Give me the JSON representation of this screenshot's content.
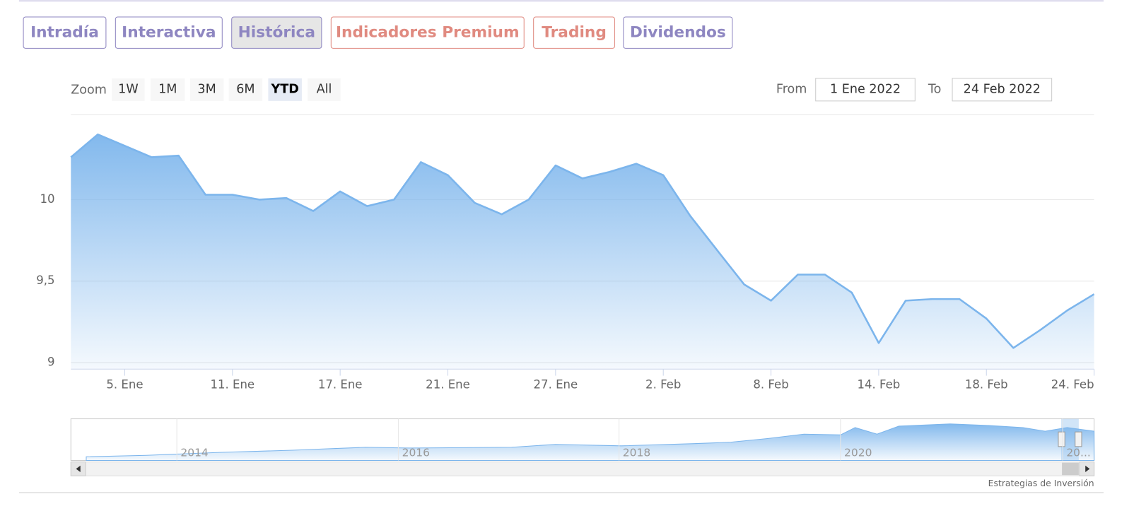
{
  "tabs": [
    {
      "label": "Intradía",
      "color": "#8e86c1"
    },
    {
      "label": "Interactiva",
      "color": "#8e86c1"
    },
    {
      "label": "Histórica",
      "color": "#8e86c1"
    },
    {
      "label": "Indicadores Premium",
      "color": "#e08a80"
    },
    {
      "label": "Trading",
      "color": "#e08a80"
    },
    {
      "label": "Dividendos",
      "color": "#8e86c1"
    }
  ],
  "active_tab": 2,
  "range_selector": {
    "zoom_label": "Zoom",
    "buttons": [
      "1W",
      "1M",
      "3M",
      "6M",
      "YTD",
      "All"
    ],
    "selected": 4,
    "from_label": "From",
    "from": "1 Ene 2022",
    "to_label": "To",
    "to": "24 Feb 2022"
  },
  "chart_data": {
    "type": "area",
    "x": [
      "2022-01-03",
      "2022-01-04",
      "2022-01-05",
      "2022-01-06",
      "2022-01-07",
      "2022-01-10",
      "2022-01-11",
      "2022-01-12",
      "2022-01-13",
      "2022-01-14",
      "2022-01-17",
      "2022-01-18",
      "2022-01-19",
      "2022-01-20",
      "2022-01-21",
      "2022-01-24",
      "2022-01-25",
      "2022-01-26",
      "2022-01-27",
      "2022-01-28",
      "2022-01-31",
      "2022-02-01",
      "2022-02-02",
      "2022-02-03",
      "2022-02-04",
      "2022-02-07",
      "2022-02-08",
      "2022-02-09",
      "2022-02-10",
      "2022-02-11",
      "2022-02-14",
      "2022-02-15",
      "2022-02-16",
      "2022-02-17",
      "2022-02-18",
      "2022-02-21",
      "2022-02-22",
      "2022-02-23",
      "2022-02-24"
    ],
    "values": [
      10.26,
      10.4,
      10.33,
      10.26,
      10.27,
      10.03,
      10.03,
      10.0,
      10.01,
      9.93,
      10.05,
      9.96,
      10.0,
      10.23,
      10.15,
      9.98,
      9.91,
      10.0,
      10.21,
      10.13,
      10.17,
      10.22,
      10.15,
      9.9,
      9.69,
      9.48,
      9.38,
      9.54,
      9.54,
      9.43,
      9.12,
      9.38,
      9.39,
      9.39,
      9.27,
      9.09,
      9.2,
      9.32,
      9.42
    ],
    "color": "#7cb5ec",
    "ylim": [
      8.96,
      10.52
    ],
    "yticks": [
      {
        "value": 9,
        "label": "9"
      },
      {
        "value": 9.5,
        "label": "9,5"
      },
      {
        "value": 10,
        "label": "10"
      }
    ],
    "xticks": [
      {
        "value": "2022-01-05",
        "label": "5. Ene"
      },
      {
        "value": "2022-01-11",
        "label": "11. Ene"
      },
      {
        "value": "2022-01-17",
        "label": "17. Ene"
      },
      {
        "value": "2022-01-21",
        "label": "21. Ene"
      },
      {
        "value": "2022-01-27",
        "label": "27. Ene"
      },
      {
        "value": "2022-02-02",
        "label": "2. Feb"
      },
      {
        "value": "2022-02-08",
        "label": "8. Feb"
      },
      {
        "value": "2022-02-14",
        "label": "14. Feb"
      },
      {
        "value": "2022-02-18",
        "label": "18. Feb"
      },
      {
        "value": "2022-02-24",
        "label": "24. Feb"
      }
    ],
    "grid": true
  },
  "navigator": {
    "labels": [
      "2014",
      "2016",
      "2018",
      "2020",
      "20..."
    ]
  },
  "credits": "Estrategias de Inversión"
}
